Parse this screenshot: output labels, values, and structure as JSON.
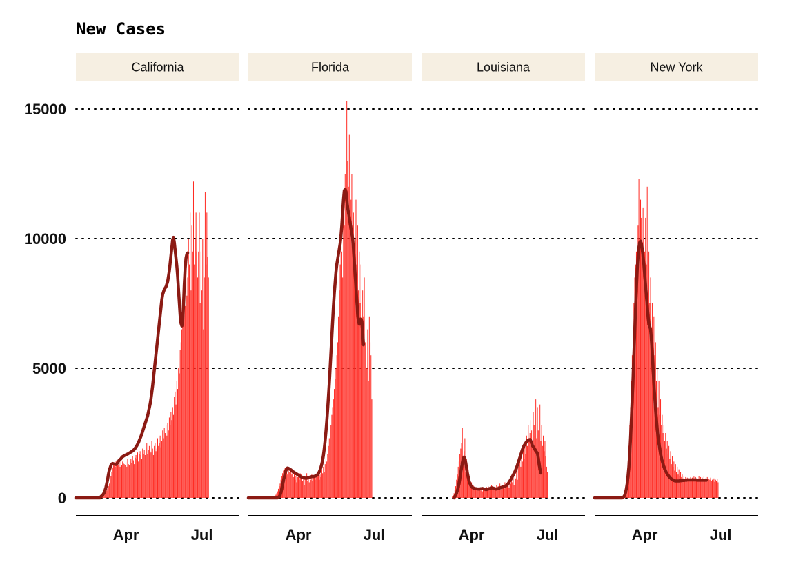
{
  "chart_data": {
    "type": "bar",
    "title": "New Cases",
    "xlabel": "",
    "ylabel": "",
    "ylim": [
      0,
      15000
    ],
    "yticks": [
      0,
      5000,
      10000,
      15000
    ],
    "xlim": [
      "2020-02-01",
      "2020-08-15"
    ],
    "xticks": [
      {
        "label": "Apr",
        "date": "2020-04-01"
      },
      {
        "label": "Jul",
        "date": "2020-07-01"
      }
    ],
    "grid": "horizontal dotted",
    "facets": [
      "California",
      "Florida",
      "Louisiana",
      "New York"
    ],
    "series": [
      {
        "facet": "California",
        "daily_values_start": "2020-03-01",
        "daily_values": [
          60,
          70,
          80,
          100,
          120,
          150,
          180,
          220,
          280,
          350,
          450,
          550,
          700,
          850,
          1000,
          1150,
          1300,
          1350,
          1200,
          1400,
          1450,
          1300,
          1250,
          1350,
          1200,
          1500,
          1250,
          1400,
          1350,
          1300,
          1250,
          1400,
          1200,
          1500,
          1300,
          1250,
          1400,
          1500,
          1350,
          1600,
          1450,
          1300,
          1550,
          1650,
          1500,
          1750,
          1400,
          1700,
          1800,
          1650,
          1500,
          1900,
          1700,
          1850,
          1650,
          1950,
          2100,
          1700,
          1850,
          2000,
          1800,
          1750,
          2200,
          1900,
          1650,
          2000,
          2100,
          1800,
          1900,
          2300,
          2000,
          2100,
          2400,
          1950,
          2200,
          2600,
          2300,
          2700,
          2500,
          2800,
          2400,
          2900,
          2600,
          3100,
          2800,
          3300,
          3000,
          3500,
          3200,
          3900,
          4100,
          3600,
          4500,
          4200,
          5000,
          4800,
          5700,
          6000,
          6500,
          7000,
          7500,
          8000,
          7400,
          9000,
          7800,
          8500,
          10000,
          9000,
          11000,
          8000,
          10500,
          9500,
          12200,
          9000,
          10000,
          11000,
          9500,
          8500,
          9500,
          11000,
          7500,
          9500,
          8000,
          10000,
          6500,
          8500,
          11800,
          9000,
          11000,
          9300,
          8500
        ],
        "avg_values_start": "2020-02-01",
        "avg_values": [
          0,
          0,
          0,
          0,
          0,
          0,
          0,
          0,
          0,
          0,
          0,
          0,
          0,
          0,
          0,
          0,
          0,
          0,
          0,
          0,
          0,
          0,
          0,
          0,
          0,
          0,
          0,
          0,
          0,
          0,
          50,
          80,
          100,
          150,
          200,
          300,
          400,
          550,
          700,
          900,
          1050,
          1150,
          1250,
          1300,
          1320,
          1310,
          1300,
          1290,
          1280,
          1300,
          1350,
          1400,
          1450,
          1480,
          1500,
          1550,
          1580,
          1600,
          1620,
          1640,
          1650,
          1670,
          1680,
          1700,
          1720,
          1740,
          1760,
          1780,
          1800,
          1830,
          1860,
          1900,
          1950,
          2000,
          2060,
          2120,
          2200,
          2280,
          2360,
          2450,
          2550,
          2650,
          2750,
          2850,
          2950,
          3050,
          3150,
          3300,
          3450,
          3600,
          3800,
          4050,
          4300,
          4600,
          4900,
          5200,
          5500,
          5800,
          6100,
          6400,
          6700,
          7000,
          7300,
          7600,
          7800,
          7900,
          8000,
          8050,
          8100,
          8200,
          8300,
          8500,
          8700,
          9000,
          9300,
          9600,
          9900,
          10000,
          9800,
          9500,
          9200,
          8900,
          8500,
          8000,
          7500,
          7000,
          6700,
          6600,
          6800,
          7400,
          8200,
          8800,
          9200,
          9350,
          9400
        ],
        "avg_peak": 10050
      },
      {
        "facet": "Florida",
        "daily_values_start": "2020-03-01",
        "daily_values": [
          30,
          40,
          60,
          90,
          120,
          180,
          250,
          350,
          450,
          550,
          700,
          850,
          950,
          1050,
          1100,
          1150,
          1000,
          1200,
          900,
          1100,
          1000,
          950,
          1050,
          900,
          1000,
          800,
          950,
          700,
          850,
          600,
          800,
          900,
          700,
          950,
          750,
          900,
          650,
          850,
          500,
          800,
          700,
          950,
          650,
          800,
          600,
          750,
          700,
          900,
          650,
          850,
          800,
          700,
          900,
          800,
          850,
          1000,
          700,
          900,
          800,
          1100,
          950,
          1200,
          1000,
          1300,
          1500,
          1400,
          1700,
          2000,
          2300,
          2500,
          2800,
          3200,
          3500,
          3800,
          4200,
          4600,
          5000,
          5500,
          6000,
          7000,
          8000,
          9000,
          10000,
          9500,
          8500,
          11000,
          10500,
          12500,
          11000,
          15300,
          13000,
          12000,
          14000,
          12300,
          11500,
          12500,
          10500,
          11000,
          9500,
          10000,
          11500,
          9000,
          10500,
          8000,
          9500,
          7500,
          9000,
          6500,
          8000,
          7000,
          8500,
          6000,
          7500,
          5000,
          6500,
          4500,
          7000,
          6000,
          5500,
          3800
        ],
        "avg_values_start": "2020-02-01",
        "avg_values": [
          0,
          0,
          0,
          0,
          0,
          0,
          0,
          0,
          0,
          0,
          0,
          0,
          0,
          0,
          0,
          0,
          0,
          0,
          0,
          0,
          0,
          0,
          0,
          0,
          0,
          0,
          0,
          0,
          0,
          0,
          0,
          0,
          0,
          0,
          0,
          0,
          20,
          50,
          100,
          200,
          350,
          500,
          650,
          800,
          950,
          1050,
          1120,
          1150,
          1140,
          1120,
          1100,
          1080,
          1050,
          1020,
          1000,
          980,
          960,
          940,
          920,
          900,
          880,
          860,
          840,
          820,
          800,
          790,
          780,
          770,
          760,
          760,
          760,
          770,
          780,
          790,
          800,
          810,
          820,
          820,
          820,
          830,
          840,
          850,
          870,
          900,
          950,
          1000,
          1080,
          1180,
          1300,
          1450,
          1650,
          1900,
          2200,
          2550,
          2950,
          3400,
          3900,
          4400,
          5000,
          5600,
          6200,
          6800,
          7400,
          7900,
          8300,
          8700,
          9000,
          9200,
          9400,
          9600,
          9800,
          10100,
          10500,
          11000,
          11500,
          11850,
          11900,
          11800,
          11500,
          11200,
          11000,
          10800,
          10600,
          10400,
          10200,
          10000,
          9600,
          9100,
          8600,
          8100,
          7600,
          7100,
          6800,
          6700,
          6800,
          6900,
          6800,
          6400,
          5900
        ],
        "avg_peak": 11900
      },
      {
        "facet": "Louisiana",
        "daily_values_start": "2020-03-09",
        "daily_values": [
          50,
          100,
          180,
          300,
          450,
          700,
          900,
          1200,
          1400,
          1700,
          1900,
          2100,
          2700,
          1500,
          1800,
          2300,
          1000,
          1500,
          900,
          1100,
          700,
          800,
          500,
          600,
          400,
          500,
          350,
          450,
          300,
          400,
          280,
          350,
          300,
          400,
          280,
          350,
          250,
          300,
          280,
          380,
          300,
          420,
          350,
          450,
          300,
          400,
          350,
          500,
          450,
          350,
          300,
          450,
          400,
          500,
          350,
          450,
          400,
          550,
          300,
          450,
          500,
          400,
          350,
          600,
          500,
          550,
          450,
          650,
          400,
          600,
          550,
          700,
          600,
          800,
          500,
          900,
          750,
          1000,
          700,
          1200,
          1000,
          1400,
          1200,
          1600,
          1400,
          1800,
          1500,
          2000,
          1700,
          2400,
          2000,
          2800,
          2200,
          2500,
          3000,
          2600,
          2200,
          3300,
          2800,
          2400,
          3800,
          2300,
          3500,
          2600,
          3000,
          3600,
          2200,
          2800,
          2000,
          2400,
          1800,
          2200,
          1600,
          1200,
          1000
        ],
        "avg_values_start": "2020-03-11",
        "avg_values": [
          0,
          50,
          100,
          180,
          280,
          400,
          550,
          750,
          950,
          1150,
          1350,
          1500,
          1560,
          1500,
          1350,
          1150,
          950,
          800,
          650,
          550,
          480,
          430,
          400,
          380,
          370,
          360,
          350,
          350,
          340,
          340,
          340,
          340,
          350,
          350,
          360,
          350,
          340,
          330,
          320,
          320,
          330,
          340,
          350,
          360,
          370,
          380,
          380,
          370,
          360,
          350,
          340,
          340,
          350,
          360,
          370,
          380,
          390,
          400,
          410,
          420,
          430,
          440,
          460,
          480,
          510,
          550,
          600,
          650,
          700,
          760,
          820,
          880,
          940,
          1000,
          1080,
          1160,
          1250,
          1350,
          1450,
          1550,
          1650,
          1750,
          1850,
          1930,
          2000,
          2050,
          2100,
          2150,
          2180,
          2200,
          2220,
          2230,
          2180,
          2100,
          2000,
          1950,
          1900,
          1850,
          1800,
          1750,
          1700,
          1500,
          1300,
          1100,
          950
        ],
        "avg_peak": 2250
      },
      {
        "facet": "New York",
        "daily_values_start": "2020-03-04",
        "daily_values": [
          20,
          40,
          80,
          120,
          200,
          350,
          600,
          900,
          1400,
          2000,
          2800,
          3500,
          4500,
          5500,
          6500,
          7500,
          8500,
          9000,
          9500,
          8000,
          10500,
          12300,
          10000,
          11500,
          10800,
          9800,
          11200,
          10000,
          9500,
          10800,
          9000,
          12000,
          8000,
          9500,
          7500,
          8500,
          6500,
          7500,
          6000,
          7000,
          5500,
          6000,
          4500,
          5000,
          3500,
          4500,
          3200,
          3800,
          2800,
          3200,
          2500,
          2800,
          2200,
          2500,
          1900,
          2200,
          1700,
          2000,
          1500,
          1800,
          1300,
          1600,
          1200,
          1400,
          1050,
          1300,
          1000,
          1200,
          900,
          1100,
          850,
          1000,
          800,
          900,
          750,
          850,
          700,
          800,
          680,
          780,
          650,
          750,
          700,
          800,
          650,
          780,
          700,
          820,
          680,
          800,
          650,
          750,
          700,
          850,
          700,
          800,
          650,
          780,
          720,
          820,
          680,
          750,
          700,
          800,
          650,
          720,
          700,
          780,
          650,
          700,
          680,
          750,
          620,
          700,
          650,
          720,
          600
        ],
        "avg_values_start": "2020-02-01",
        "avg_values": [
          0,
          0,
          0,
          0,
          0,
          0,
          0,
          0,
          0,
          0,
          0,
          0,
          0,
          0,
          0,
          0,
          0,
          0,
          0,
          0,
          0,
          0,
          0,
          0,
          0,
          0,
          0,
          0,
          0,
          0,
          0,
          0,
          0,
          0,
          20,
          50,
          100,
          200,
          350,
          550,
          850,
          1200,
          1700,
          2300,
          3000,
          3800,
          4600,
          5500,
          6400,
          7300,
          8100,
          8800,
          9300,
          9650,
          9850,
          9900,
          9800,
          9600,
          9300,
          9000,
          8600,
          8200,
          7800,
          7400,
          7000,
          6700,
          6600,
          6500,
          6100,
          5600,
          5000,
          4400,
          3900,
          3400,
          3000,
          2650,
          2350,
          2100,
          1900,
          1700,
          1550,
          1420,
          1300,
          1200,
          1120,
          1040,
          980,
          920,
          870,
          830,
          790,
          760,
          730,
          710,
          690,
          670,
          660,
          650,
          650,
          650,
          650,
          650,
          660,
          660,
          660,
          670,
          670,
          670,
          680,
          680,
          680,
          690,
          690,
          690,
          690,
          690,
          690,
          690,
          690,
          690,
          690,
          690,
          690,
          680,
          680,
          680,
          680,
          680,
          680,
          680,
          680,
          680,
          680,
          680,
          680
        ],
        "avg_peak": 9900
      }
    ]
  }
}
